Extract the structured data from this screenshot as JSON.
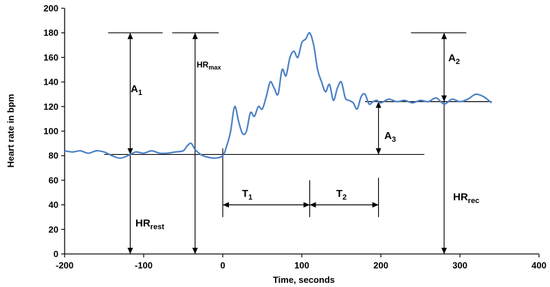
{
  "chart_data": {
    "type": "line",
    "title": "",
    "xlabel": "Time, seconds",
    "ylabel": "Heart rate in bpm",
    "xlim": [
      -200,
      400
    ],
    "ylim": [
      0,
      200
    ],
    "x_ticks": [
      -200,
      -100,
      0,
      100,
      200,
      300,
      400
    ],
    "y_ticks": [
      0,
      20,
      40,
      60,
      80,
      100,
      120,
      140,
      160,
      180,
      200
    ],
    "grid": false,
    "legend": "none",
    "line_color": "#4a7fc4",
    "series": [
      {
        "x": [
          -200,
          -190,
          -180,
          -170,
          -160,
          -150,
          -140,
          -130,
          -120,
          -110,
          -100,
          -90,
          -80,
          -70,
          -60,
          -50,
          -45,
          -40,
          -35,
          -30,
          -25,
          -20,
          -10,
          0,
          5,
          10,
          15,
          20,
          25,
          30,
          35,
          40,
          45,
          50,
          55,
          60,
          65,
          70,
          75,
          80,
          85,
          90,
          95,
          100,
          105,
          110,
          115,
          120,
          125,
          130,
          135,
          140,
          145,
          150,
          155,
          160,
          165,
          170,
          175,
          180,
          185,
          190,
          195,
          200,
          210,
          220,
          230,
          240,
          250,
          260,
          270,
          280,
          290,
          300,
          310,
          320,
          330,
          340
        ],
        "y": [
          84,
          83,
          84,
          82,
          84,
          83,
          80,
          78,
          80,
          83,
          82,
          84,
          82,
          82,
          83,
          84,
          88,
          90,
          85,
          82,
          80,
          79,
          78,
          80,
          88,
          100,
          120,
          108,
          98,
          100,
          115,
          112,
          120,
          118,
          128,
          140,
          135,
          130,
          150,
          145,
          160,
          165,
          160,
          172,
          175,
          180,
          170,
          150,
          140,
          132,
          138,
          125,
          135,
          140,
          127,
          125,
          123,
          118,
          128,
          130,
          122,
          124,
          125,
          123,
          126,
          124,
          125,
          123,
          125,
          124,
          127,
          122,
          126,
          124,
          126,
          130,
          128,
          123
        ]
      }
    ],
    "annotations": {
      "a1": {
        "main": "A",
        "sub": "1"
      },
      "a2": {
        "main": "A",
        "sub": "2"
      },
      "a3": {
        "main": "A",
        "sub": "3"
      },
      "hr_max": {
        "main": "HR",
        "sub": "max"
      },
      "hr_rest": {
        "main": "HR",
        "sub": "rest"
      },
      "hr_rec": {
        "main": "HR",
        "sub": "rec"
      },
      "t1": {
        "main": "T",
        "sub": "1"
      },
      "t2": {
        "main": "T",
        "sub": "2"
      }
    }
  }
}
